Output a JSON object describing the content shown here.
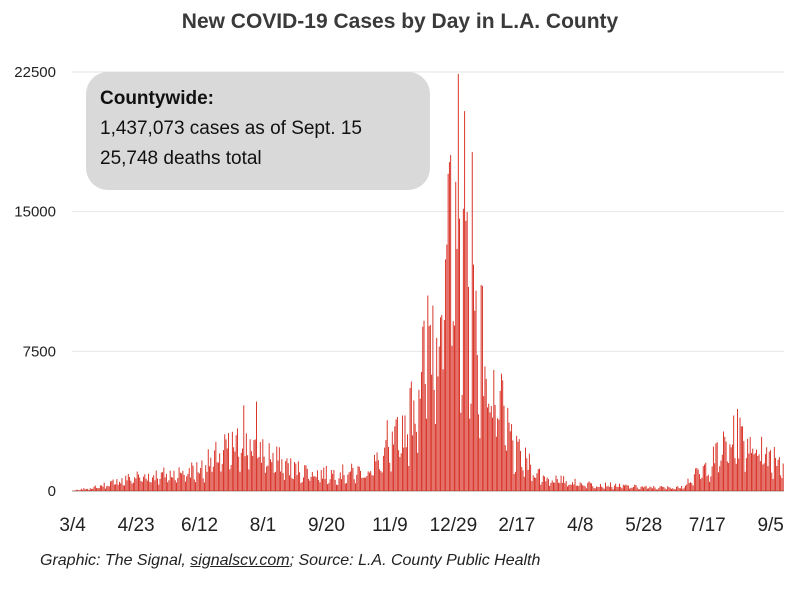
{
  "chart_data": {
    "type": "bar",
    "title": "New COVID-19 Cases by Day in L.A. County",
    "xlabel": "",
    "ylabel": "",
    "ylim": [
      0,
      22500
    ],
    "yticks": [
      "22500",
      "15000",
      "7500",
      "0"
    ],
    "xticks": [
      "3/4",
      "4/23",
      "6/12",
      "8/1",
      "9/20",
      "11/9",
      "12/29",
      "2/17",
      "4/8",
      "5/28",
      "7/17",
      "9/5"
    ],
    "grid": true,
    "bar_color": "#d62418",
    "daily_smoothed_profile": [
      {
        "day": "3/4/2020",
        "cases": 10
      },
      {
        "day": "3/24/2020",
        "cases": 250
      },
      {
        "day": "4/10/2020",
        "cases": 600
      },
      {
        "day": "4/23/2020",
        "cases": 850
      },
      {
        "day": "5/20/2020",
        "cases": 1000
      },
      {
        "day": "6/12/2020",
        "cases": 1300
      },
      {
        "day": "7/1/2020",
        "cases": 2300
      },
      {
        "day": "7/20/2020",
        "cases": 2900
      },
      {
        "day": "8/1/2020",
        "cases": 2300
      },
      {
        "day": "8/25/2020",
        "cases": 1300
      },
      {
        "day": "9/20/2020",
        "cases": 1000
      },
      {
        "day": "10/20/2020",
        "cases": 1150
      },
      {
        "day": "11/9/2020",
        "cases": 2200
      },
      {
        "day": "11/25/2020",
        "cases": 4500
      },
      {
        "day": "12/10/2020",
        "cases": 9000
      },
      {
        "day": "12/29/2020",
        "cases": 14500
      },
      {
        "day": "1/10/2021",
        "cases": 12500
      },
      {
        "day": "1/25/2021",
        "cases": 7000
      },
      {
        "day": "2/17/2021",
        "cases": 2200
      },
      {
        "day": "3/10/2021",
        "cases": 800
      },
      {
        "day": "4/8/2021",
        "cases": 450
      },
      {
        "day": "5/28/2021",
        "cases": 220
      },
      {
        "day": "6/25/2021",
        "cases": 200
      },
      {
        "day": "7/17/2021",
        "cases": 1400
      },
      {
        "day": "8/5/2021",
        "cases": 3000
      },
      {
        "day": "8/20/2021",
        "cases": 3100
      },
      {
        "day": "9/5/2021",
        "cases": 2200
      },
      {
        "day": "9/15/2021",
        "cases": 1800
      }
    ],
    "peaks": [
      {
        "day": "1/2/2021",
        "cases": 22400
      },
      {
        "day": "12/31/2020",
        "cases": 16600
      },
      {
        "day": "1/7/2021",
        "cases": 20400
      },
      {
        "day": "1/13/2021",
        "cases": 18200
      },
      {
        "day": "7/27/2020",
        "cases": 4800
      },
      {
        "day": "7/17/2020",
        "cases": 4600
      },
      {
        "day": "11/7/2020",
        "cases": 3800
      },
      {
        "day": "8/10/2021",
        "cases": 4400
      }
    ],
    "annotation": {
      "heading": "Countywide:",
      "line1": "1,437,073 cases as of Sept. 15",
      "line2": "25,748 deaths total"
    }
  },
  "credit": {
    "prefix": "Graphic: The Signal, ",
    "link": "signalscv.com",
    "suffix": "; Source: L.A. County Public Health"
  }
}
